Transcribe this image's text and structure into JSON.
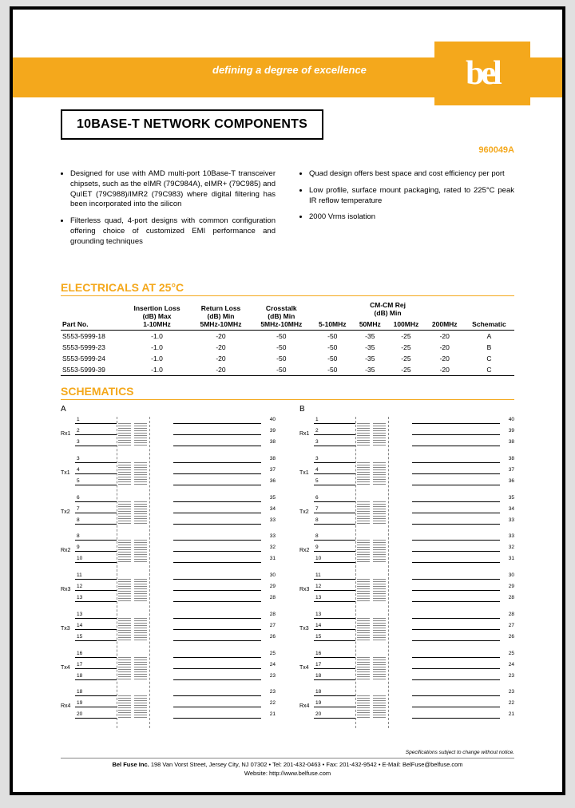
{
  "header": {
    "tagline": "defining a degree of excellence",
    "logo": "bel",
    "title": "10BASE-T NETWORK COMPONENTS",
    "doc_number": "960049A"
  },
  "bullets": {
    "left": [
      "Designed for use with AMD multi-port 10Base-T transceiver chipsets, such as the eIMR (79C984A), eIMR+ (79C985) and QuIET (79C988)/IMR2 (79C983) where digital filtering has been incorporated into the silicon",
      "Filterless quad, 4-port designs with common configuration offering choice of customized EMI performance and grounding techniques"
    ],
    "right": [
      "Quad design offers best space and cost efficiency per port",
      "Low profile, surface mount packaging, rated to 225°C peak IR reflow temperature",
      "2000 Vrms isolation"
    ]
  },
  "electricals": {
    "title": "ELECTRICALS AT 25°C",
    "columns": {
      "part": "Part No.",
      "il": "Insertion Loss\n(dB) Max\n1-10MHz",
      "rl": "Return Loss\n(dB) Min\n5MHz-10MHz",
      "xt": "Crosstalk\n(dB) Min\n5MHz-10MHz",
      "cm_group": "CM-CM Rej\n(dB) Min",
      "cm1": "5-10MHz",
      "cm2": "50MHz",
      "cm3": "100MHz",
      "cm4": "200MHz",
      "schem": "Schematic"
    },
    "rows": [
      {
        "part": "S553-5999-18",
        "il": "-1.0",
        "rl": "-20",
        "xt": "-50",
        "cm1": "-50",
        "cm2": "-35",
        "cm3": "-25",
        "cm4": "-20",
        "schem": "A"
      },
      {
        "part": "S553-5999-23",
        "il": "-1.0",
        "rl": "-20",
        "xt": "-50",
        "cm1": "-50",
        "cm2": "-35",
        "cm3": "-25",
        "cm4": "-20",
        "schem": "B"
      },
      {
        "part": "S553-5999-24",
        "il": "-1.0",
        "rl": "-20",
        "xt": "-50",
        "cm1": "-50",
        "cm2": "-35",
        "cm3": "-25",
        "cm4": "-20",
        "schem": "C"
      },
      {
        "part": "S553-5999-39",
        "il": "-1.0",
        "rl": "-20",
        "xt": "-50",
        "cm1": "-50",
        "cm2": "-35",
        "cm3": "-25",
        "cm4": "-20",
        "schem": "C"
      }
    ]
  },
  "schematics": {
    "title": "SCHEMATICS",
    "a_label": "A",
    "b_label": "B",
    "ports": [
      {
        "name": "Rx1",
        "l1": "1",
        "l2": "2",
        "l3": "3",
        "r1": "40",
        "r2": "39",
        "r3": "38"
      },
      {
        "name": "Tx1",
        "l1": "3",
        "l2": "4",
        "l3": "5",
        "r1": "38",
        "r2": "37",
        "r3": "36"
      },
      {
        "name": "Tx2",
        "l1": "6",
        "l2": "7",
        "l3": "8",
        "r1": "35",
        "r2": "34",
        "r3": "33"
      },
      {
        "name": "Rx2",
        "l1": "8",
        "l2": "9",
        "l3": "10",
        "r1": "33",
        "r2": "32",
        "r3": "31"
      },
      {
        "name": "Rx3",
        "l1": "11",
        "l2": "12",
        "l3": "13",
        "r1": "30",
        "r2": "29",
        "r3": "28"
      },
      {
        "name": "Tx3",
        "l1": "13",
        "l2": "14",
        "l3": "15",
        "r1": "28",
        "r2": "27",
        "r3": "26"
      },
      {
        "name": "Tx4",
        "l1": "16",
        "l2": "17",
        "l3": "18",
        "r1": "25",
        "r2": "24",
        "r3": "23"
      },
      {
        "name": "Rx4",
        "l1": "18",
        "l2": "19",
        "l3": "20",
        "r1": "23",
        "r2": "22",
        "r3": "21"
      }
    ]
  },
  "footer": {
    "note": "Specifications subject to change without notice.",
    "line1": "Bel Fuse Inc. 198 Van Vorst Street, Jersey City, NJ 07302 • Tel: 201-432-0463 • Fax: 201-432-9542 • E-Mail: BelFuse@belfuse.com",
    "line2": "Website: http://www.belfuse.com"
  },
  "colors": {
    "brand": "#f4a81c",
    "text": "#000000",
    "bg": "#ffffff"
  }
}
